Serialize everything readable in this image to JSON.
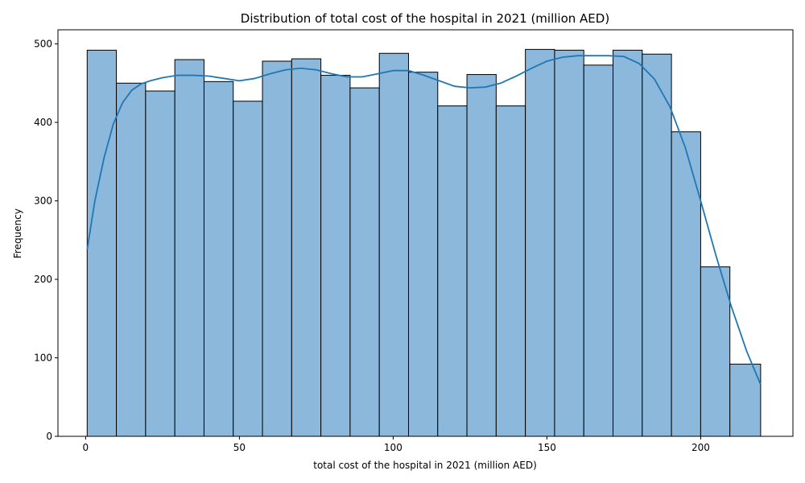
{
  "chart_data": {
    "type": "bar",
    "title": "Distribution of total cost of the hospital in 2021 (million AED)",
    "xlabel": "total cost of the hospital in 2021 (million AED)",
    "ylabel": "Frequency",
    "xlim": [
      -9,
      230
    ],
    "ylim": [
      0,
      518
    ],
    "xticks": [
      0,
      50,
      100,
      150,
      200
    ],
    "yticks": [
      0,
      100,
      200,
      300,
      400,
      500
    ],
    "bin_edges": [
      0.5,
      10.0,
      19.5,
      29.0,
      38.5,
      48.0,
      57.5,
      67.0,
      76.5,
      86.0,
      95.5,
      105.0,
      114.5,
      124.0,
      133.5,
      143.0,
      152.5,
      162.0,
      171.5,
      181.0,
      190.5,
      200.0,
      209.5,
      219.5
    ],
    "values": [
      492,
      450,
      440,
      480,
      452,
      427,
      478,
      481,
      460,
      444,
      488,
      464,
      421,
      461,
      421,
      493,
      492,
      473,
      492,
      487,
      388,
      216,
      92
    ],
    "kde": {
      "color": "#1f77b4",
      "x": [
        0.5,
        3,
        6,
        9,
        12,
        15,
        18,
        21,
        25,
        30,
        35,
        40,
        45,
        50,
        55,
        60,
        65,
        70,
        75,
        80,
        85,
        90,
        95,
        100,
        105,
        110,
        115,
        120,
        125,
        130,
        135,
        140,
        145,
        150,
        155,
        160,
        165,
        170,
        175,
        180,
        185,
        190,
        195,
        200,
        205,
        210,
        215,
        219.5
      ],
      "y": [
        238,
        300,
        355,
        398,
        425,
        441,
        449,
        453,
        457,
        460,
        460,
        459,
        456,
        453,
        456,
        462,
        467,
        469,
        467,
        462,
        458,
        458,
        462,
        466,
        466,
        460,
        453,
        446,
        444,
        445,
        450,
        459,
        469,
        478,
        483,
        485,
        485,
        485,
        484,
        475,
        455,
        420,
        368,
        300,
        230,
        165,
        108,
        66
      ]
    },
    "bar_color": "#8cb8dc",
    "grid": false,
    "legend": "none"
  }
}
